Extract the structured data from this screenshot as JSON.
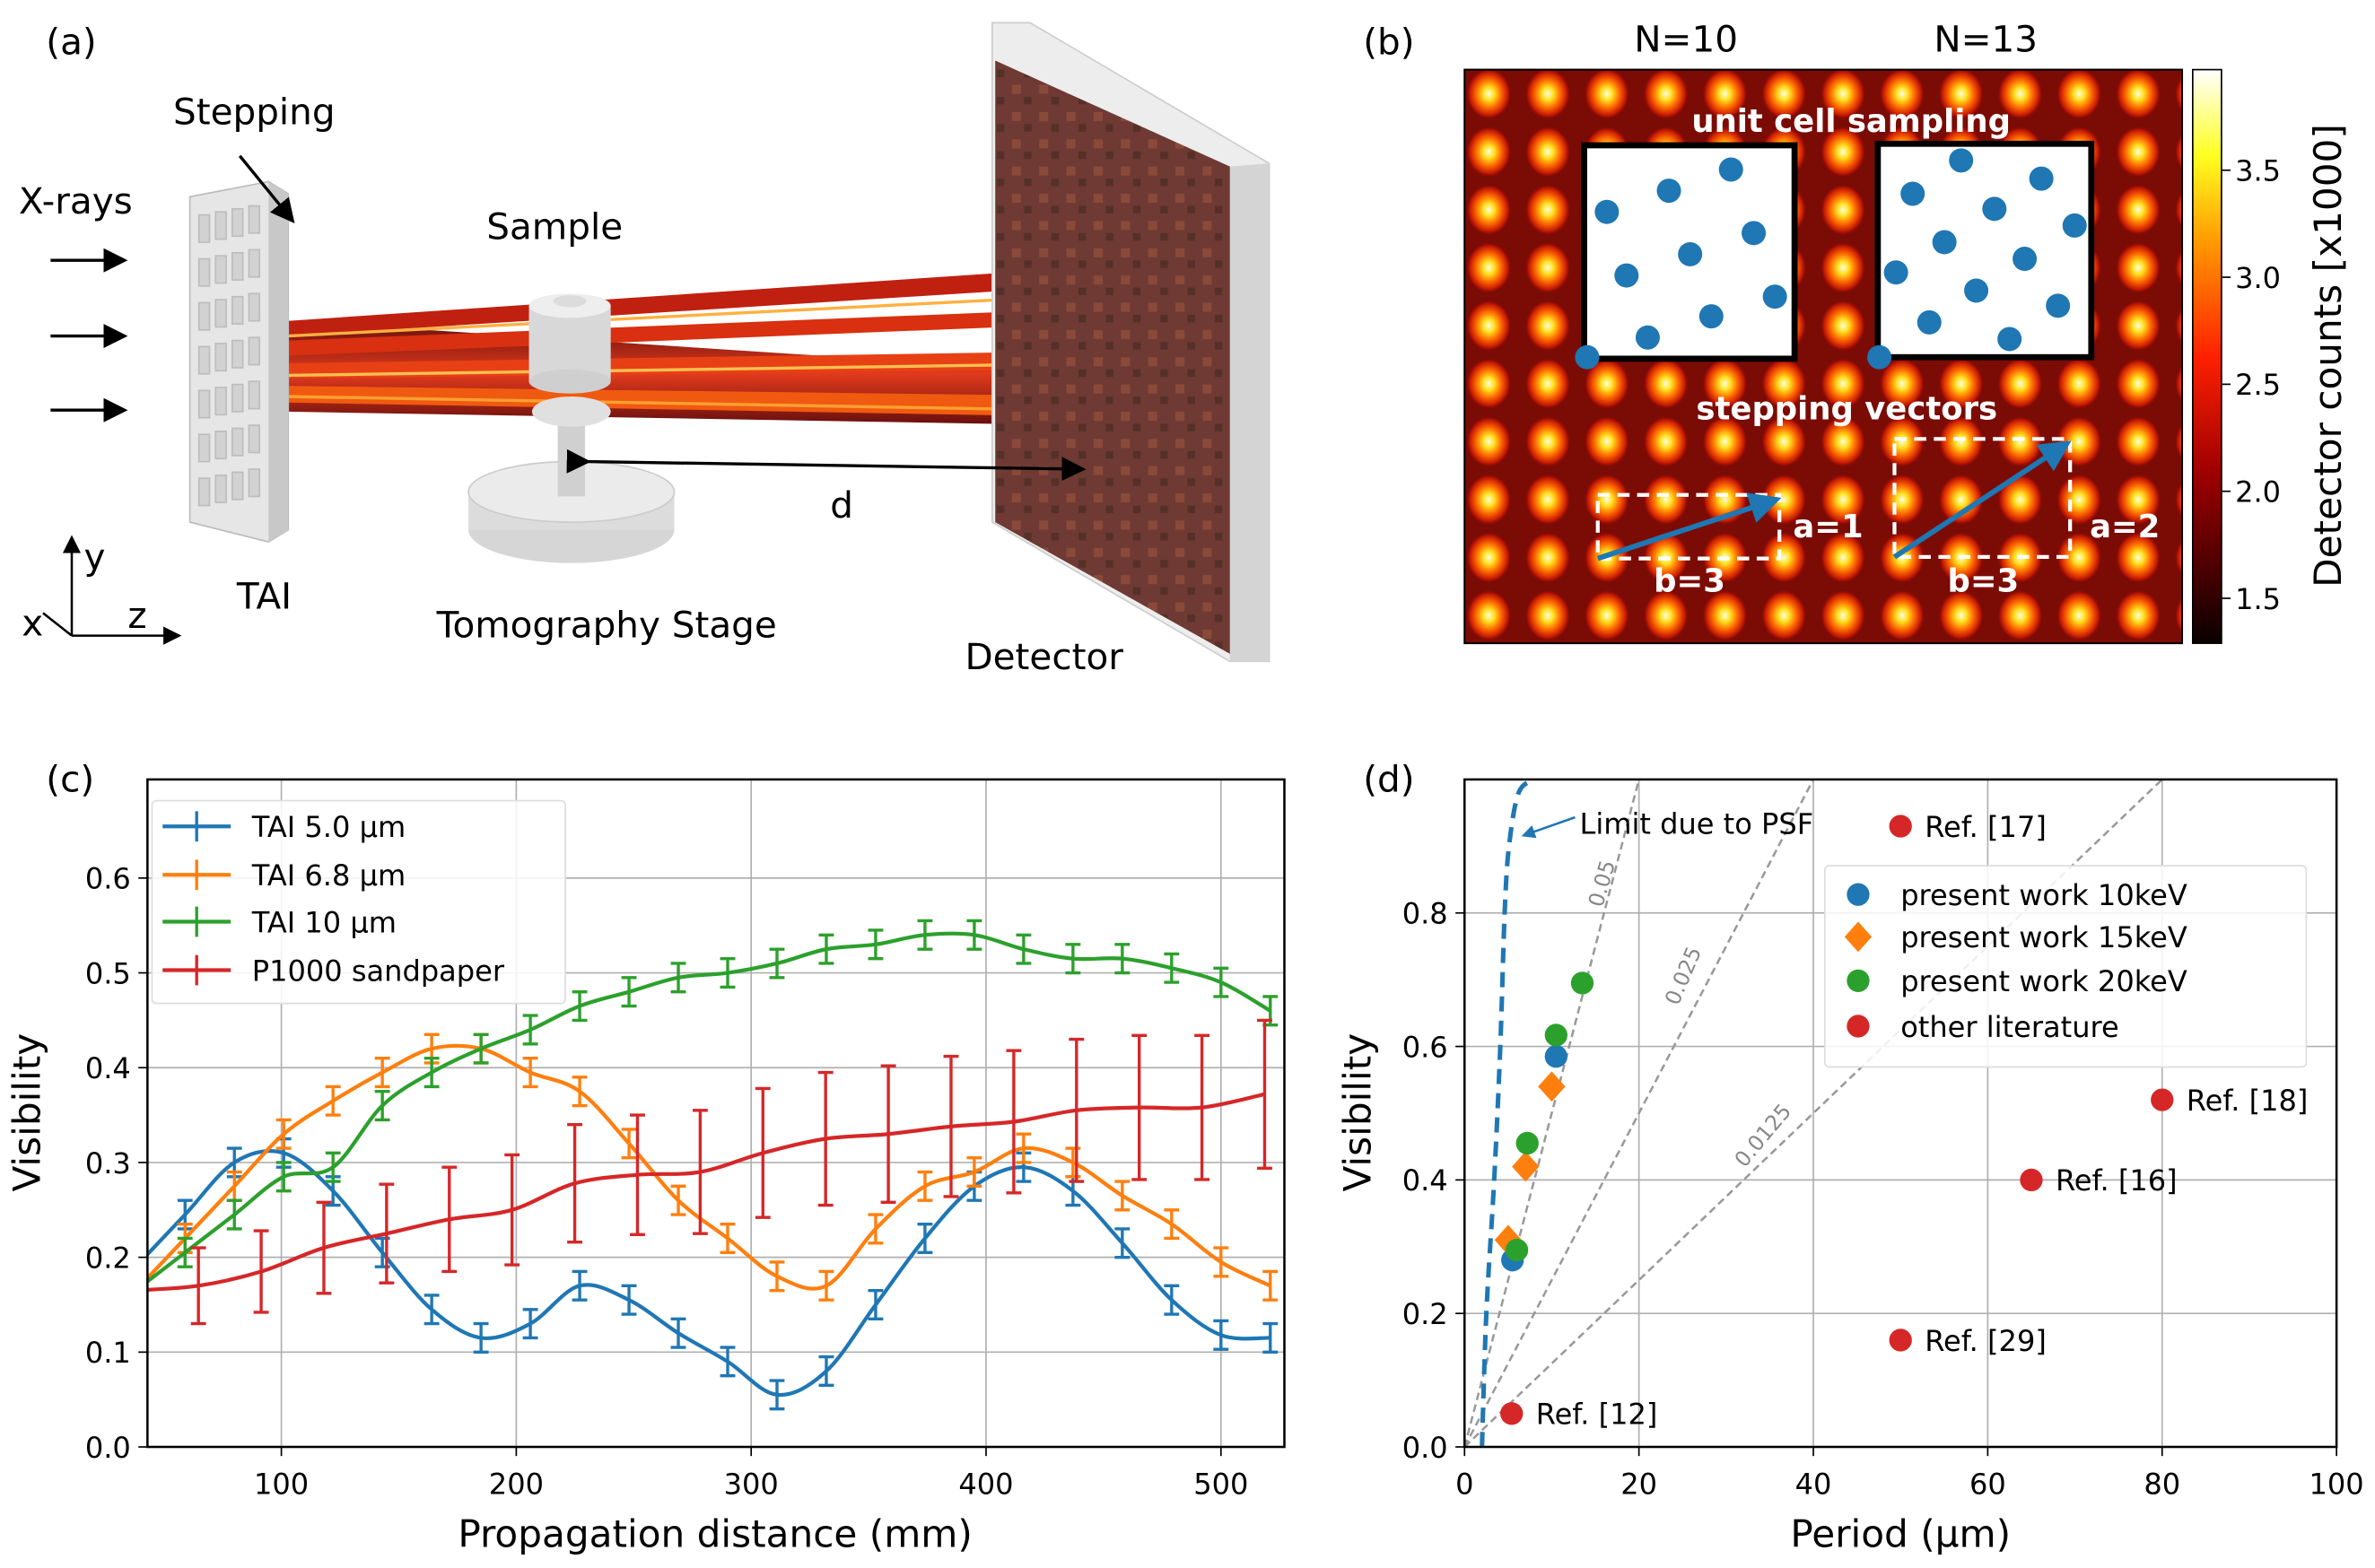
{
  "panel_a": {
    "label": "(a)",
    "stepping": "Stepping",
    "xrays": "X-rays",
    "sample": "Sample",
    "tai": "TAI",
    "stage": "Tomography Stage",
    "detector": "Detector",
    "distance": "d",
    "axis_x": "x",
    "axis_y": "y",
    "axis_z": "z"
  },
  "panel_b": {
    "label": "(b)",
    "n10": "N=10",
    "n13": "N=13",
    "unit_cell": "unit cell sampling",
    "stepping_vectors": "stepping vectors",
    "a1": "a=1",
    "b1": "b=3",
    "a2": "a=2",
    "b2": "b=3",
    "colorbar_label": "Detector counts [x1000]",
    "colorbar_ticks": [
      "1.5",
      "2.0",
      "2.5",
      "3.0",
      "3.5"
    ],
    "colorbar_range": [
      1.29,
      3.97
    ],
    "colormap": "hot",
    "dot_color": "#1f77b4"
  },
  "chart_data": [
    {
      "panel": "(c)",
      "type": "line",
      "xlabel": "Propagation distance (mm)",
      "ylabel": "Visibility",
      "xlim": [
        43,
        527
      ],
      "ylim": [
        0.0,
        0.704
      ],
      "xticks": [
        "100",
        "200",
        "300",
        "400",
        "500"
      ],
      "yticks": [
        "0.0",
        "0.1",
        "0.2",
        "0.3",
        "0.4",
        "0.5",
        "0.6"
      ],
      "grid": true,
      "legend_placement": "top-left",
      "series": [
        {
          "name": "TAI 5.0 µm",
          "color": "#1f77b4",
          "x": [
            38,
            59,
            80,
            101,
            122,
            143,
            164,
            185,
            206,
            227,
            248,
            269,
            290,
            311,
            332,
            353,
            374,
            395,
            416,
            437,
            458,
            479,
            500,
            521
          ],
          "y": [
            0.19,
            0.245,
            0.3,
            0.31,
            0.27,
            0.205,
            0.145,
            0.115,
            0.13,
            0.17,
            0.155,
            0.12,
            0.09,
            0.055,
            0.08,
            0.15,
            0.22,
            0.275,
            0.295,
            0.27,
            0.215,
            0.155,
            0.118,
            0.115
          ],
          "err": 0.015
        },
        {
          "name": "TAI 6.8 µm",
          "color": "#ff7f0e",
          "x": [
            38,
            59,
            80,
            101,
            122,
            143,
            164,
            185,
            206,
            227,
            248,
            269,
            290,
            311,
            332,
            353,
            374,
            395,
            416,
            437,
            458,
            479,
            500,
            521
          ],
          "y": [
            0.165,
            0.22,
            0.275,
            0.33,
            0.365,
            0.395,
            0.42,
            0.42,
            0.395,
            0.375,
            0.32,
            0.26,
            0.22,
            0.18,
            0.17,
            0.23,
            0.275,
            0.29,
            0.315,
            0.3,
            0.265,
            0.235,
            0.195,
            0.17
          ],
          "err": 0.015
        },
        {
          "name": "TAI 10 µm",
          "color": "#2ca02c",
          "x": [
            38,
            59,
            80,
            101,
            122,
            143,
            164,
            185,
            206,
            227,
            248,
            269,
            290,
            311,
            332,
            353,
            374,
            395,
            416,
            437,
            458,
            479,
            500,
            521
          ],
          "y": [
            0.165,
            0.205,
            0.245,
            0.285,
            0.295,
            0.36,
            0.395,
            0.42,
            0.44,
            0.465,
            0.48,
            0.495,
            0.5,
            0.51,
            0.525,
            0.53,
            0.54,
            0.54,
            0.525,
            0.515,
            0.515,
            0.505,
            0.49,
            0.46
          ],
          "err": 0.015
        },
        {
          "name": "P1000 sandpaper",
          "color": "#d62728",
          "x": [
            38,
            64.7,
            91.4,
            118.1,
            144.8,
            171.5,
            198.2,
            224.9,
            251.6,
            278.3,
            305,
            331.7,
            358.4,
            385.1,
            411.8,
            438.5,
            465.2,
            491.9,
            518.6
          ],
          "y": [
            0.165,
            0.17,
            0.185,
            0.21,
            0.225,
            0.24,
            0.25,
            0.278,
            0.287,
            0.29,
            0.31,
            0.325,
            0.33,
            0.338,
            0.343,
            0.355,
            0.358,
            0.358,
            0.372
          ],
          "err": [
            0.038,
            0.04,
            0.043,
            0.048,
            0.052,
            0.055,
            0.058,
            0.062,
            0.063,
            0.065,
            0.068,
            0.07,
            0.072,
            0.074,
            0.075,
            0.075,
            0.076,
            0.076,
            0.078
          ]
        }
      ]
    },
    {
      "panel": "(d)",
      "type": "scatter",
      "xlabel": "Period (µm)",
      "ylabel": "Visibility",
      "xlim": [
        0,
        100
      ],
      "ylim": [
        0.0,
        1.0
      ],
      "xticks": [
        "0",
        "20",
        "40",
        "60",
        "80",
        "100"
      ],
      "yticks": [
        "0.0",
        "0.2",
        "0.4",
        "0.6",
        "0.8"
      ],
      "grid": true,
      "legend_placement": "upper-right",
      "series": [
        {
          "name": "present work 10keV",
          "color": "#1f77b4",
          "marker": "circle",
          "points": [
            [
              5.5,
              0.28
            ],
            [
              10.5,
              0.585
            ]
          ]
        },
        {
          "name": "present work 15keV",
          "color": "#ff7f0e",
          "marker": "diamond",
          "points": [
            [
              5,
              0.31
            ],
            [
              7,
              0.42
            ],
            [
              10,
              0.54
            ]
          ]
        },
        {
          "name": "present work 20keV",
          "color": "#2ca02c",
          "marker": "circle",
          "points": [
            [
              6,
              0.295
            ],
            [
              7.2,
              0.455
            ],
            [
              10.5,
              0.617
            ],
            [
              13.5,
              0.695
            ]
          ]
        },
        {
          "name": "other literature",
          "color": "#d62728",
          "marker": "circle",
          "points": [
            [
              50,
              0.93
            ],
            [
              80,
              0.52
            ],
            [
              65,
              0.4
            ],
            [
              50,
              0.16
            ],
            [
              5.4,
              0.05
            ]
          ],
          "labels": [
            "Ref. [17]",
            "Ref. [18]",
            "Ref. [16]",
            "Ref. [29]",
            "Ref. [12]"
          ]
        }
      ],
      "reference_lines": [
        {
          "label": "0.05",
          "slope": 0.05
        },
        {
          "label": "0.025",
          "slope": 0.025
        },
        {
          "label": "0.0125",
          "slope": 0.0125
        }
      ],
      "psf_limit": {
        "label": "Limit due to PSF",
        "color": "#1f77b4",
        "points": [
          [
            2,
            0
          ],
          [
            2.5,
            0.2
          ],
          [
            3.4,
            0.4
          ],
          [
            4.1,
            0.6
          ],
          [
            4.6,
            0.8
          ],
          [
            5.1,
            0.9
          ],
          [
            6.2,
            0.98
          ],
          [
            8,
            1.0
          ]
        ]
      }
    }
  ]
}
